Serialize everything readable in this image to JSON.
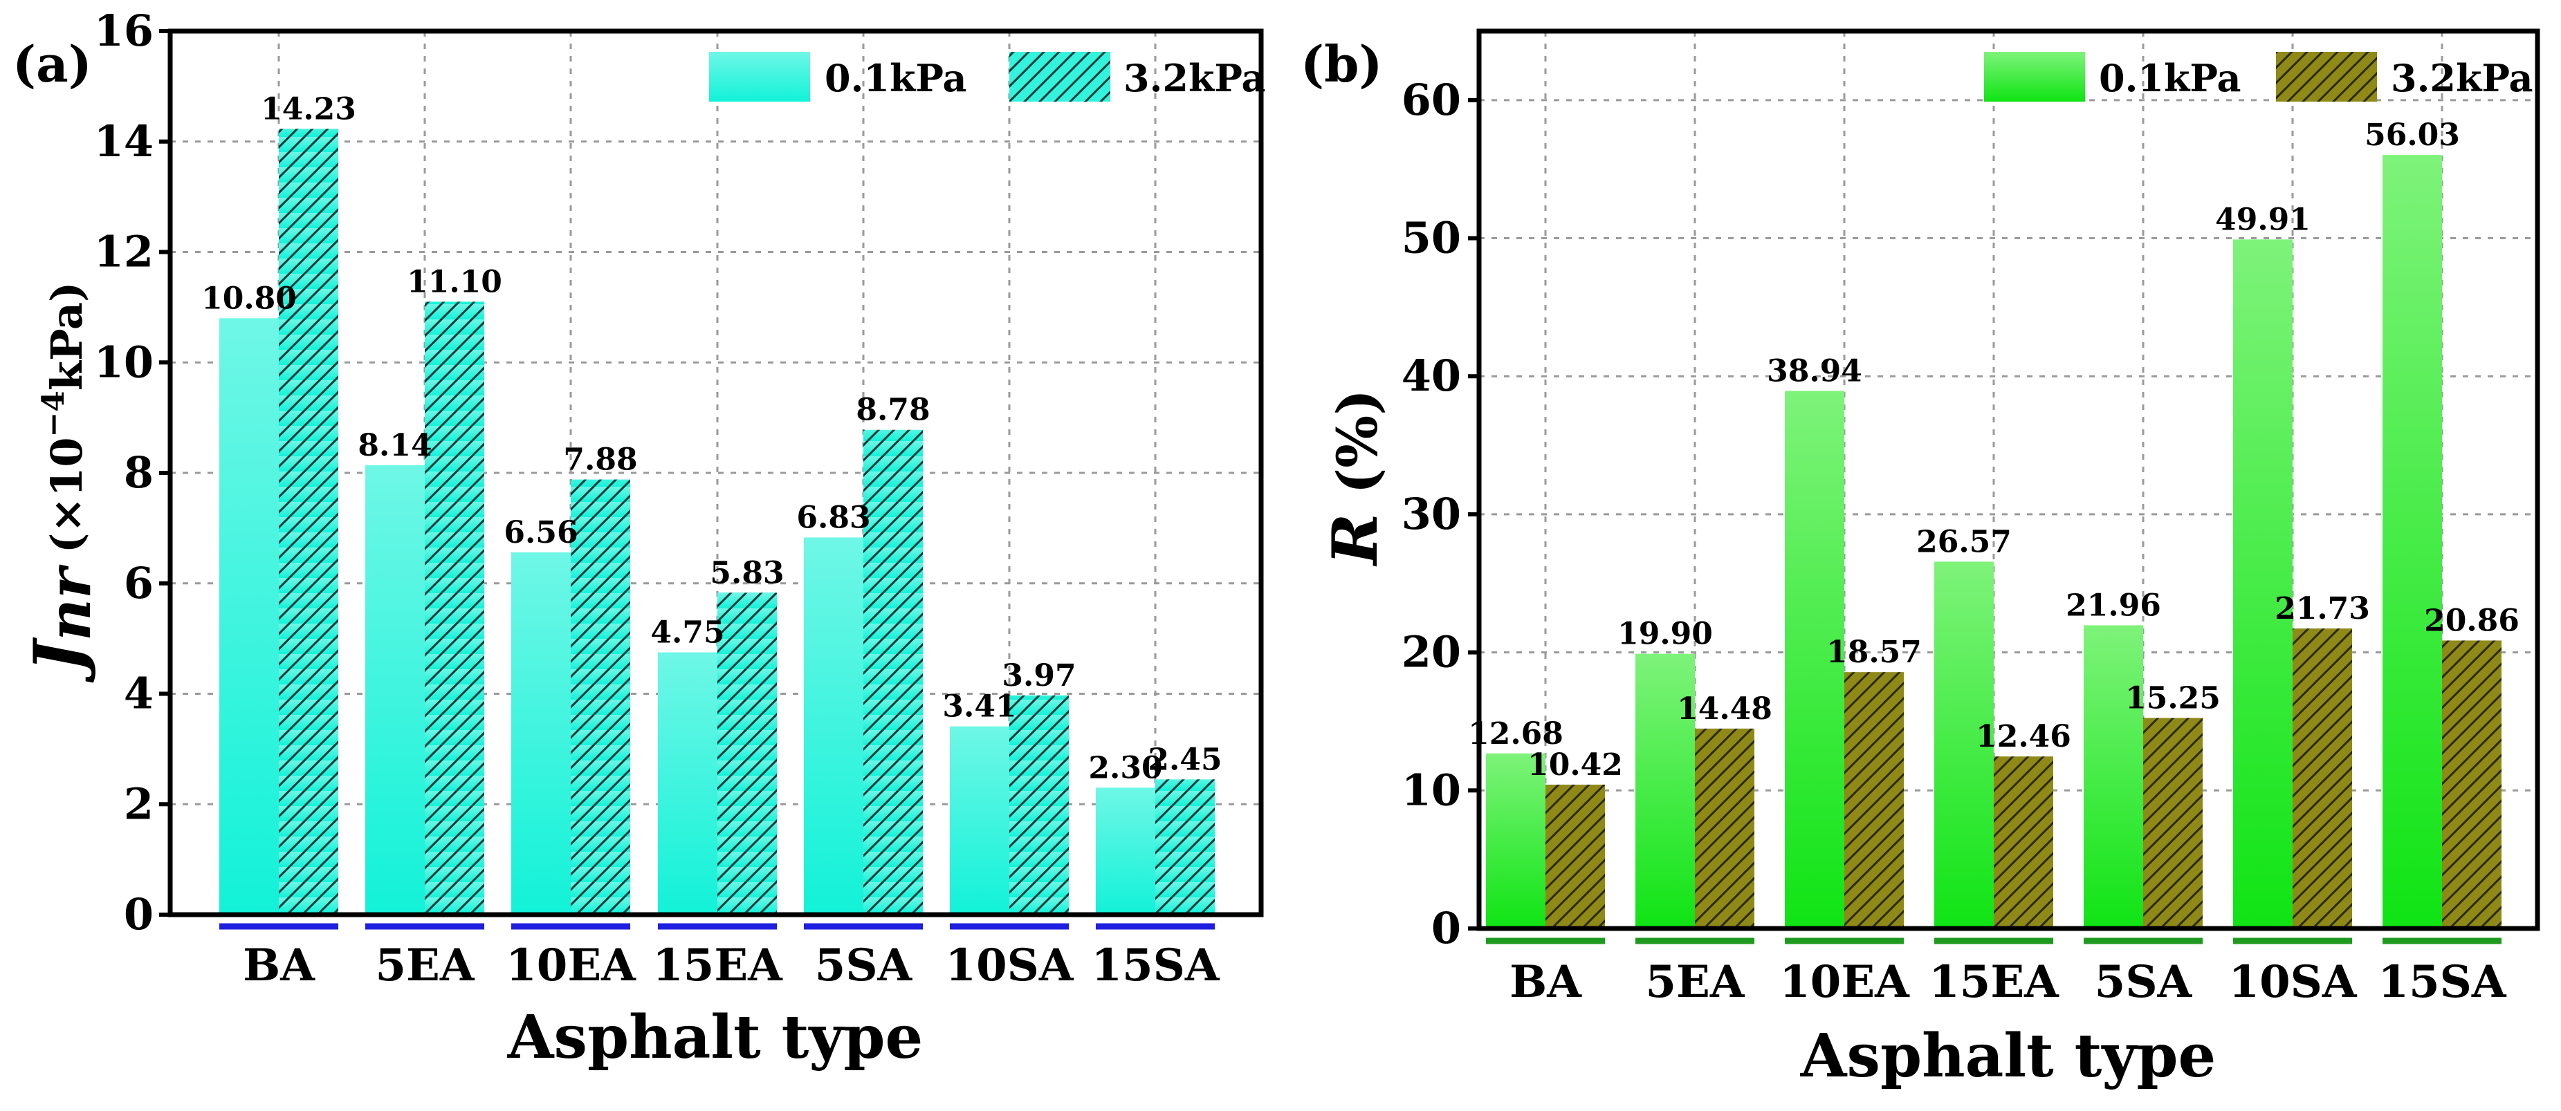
{
  "chart_data": [
    {
      "panel": "(a)",
      "type": "bar",
      "categories": [
        "BA",
        "5EA",
        "10EA",
        "15EA",
        "5SA",
        "10SA",
        "15SA"
      ],
      "series": [
        {
          "name": "0.1kPa",
          "values": [
            10.8,
            8.14,
            6.56,
            4.75,
            6.83,
            3.41,
            2.3
          ],
          "labels": [
            "10.80",
            "8.14",
            "6.56",
            "4.75",
            "6.83",
            "3.41",
            "2.30"
          ],
          "color": "#33f3dc",
          "hatched": false
        },
        {
          "name": "3.2kPa",
          "values": [
            14.23,
            11.1,
            7.88,
            5.83,
            8.78,
            3.97,
            2.45
          ],
          "labels": [
            "14.23",
            "11.10",
            "7.88",
            "5.83",
            "8.78",
            "3.97",
            "2.45"
          ],
          "color": "#33f3dc",
          "hatched": true
        }
      ],
      "xlabel": "Asphalt type",
      "ylabel_symbol": "J",
      "ylabel_sub": "nr",
      "ylabel_unit": " (×10",
      "ylabel_exp": "−4",
      "ylabel_tail": "kPa)",
      "ylim": [
        0,
        16
      ],
      "yticks": [
        "0",
        "2",
        "4",
        "6",
        "8",
        "10",
        "12",
        "14",
        "16"
      ],
      "grid": true,
      "legend_position": "top-right",
      "category_marker_color": "#1f1fe0"
    },
    {
      "panel": "(b)",
      "type": "bar",
      "categories": [
        "BA",
        "5EA",
        "10EA",
        "15EA",
        "5SA",
        "10SA",
        "15SA"
      ],
      "series": [
        {
          "name": "0.1kPa",
          "values": [
            12.68,
            19.9,
            38.94,
            26.57,
            21.96,
            49.91,
            56.03
          ],
          "labels": [
            "12.68",
            "19.90",
            "38.94",
            "26.57",
            "21.96",
            "49.91",
            "56.03"
          ],
          "color": "#22e62a",
          "hatched": false
        },
        {
          "name": "3.2kPa",
          "values": [
            10.42,
            14.48,
            18.57,
            12.46,
            15.25,
            21.73,
            20.86
          ],
          "labels": [
            "10.42",
            "14.48",
            "18.57",
            "12.46",
            "15.25",
            "21.73",
            "20.86"
          ],
          "color": "#8f8a18",
          "hatched": true
        }
      ],
      "xlabel": "Asphalt type",
      "ylabel_symbol": "R",
      "ylabel_tail": " (%)",
      "ylim": [
        0,
        65
      ],
      "yticks": [
        "0",
        "10",
        "20",
        "30",
        "40",
        "50",
        "60"
      ],
      "grid": true,
      "legend_position": "top-right",
      "category_marker_color": "#1e9a1e"
    }
  ]
}
